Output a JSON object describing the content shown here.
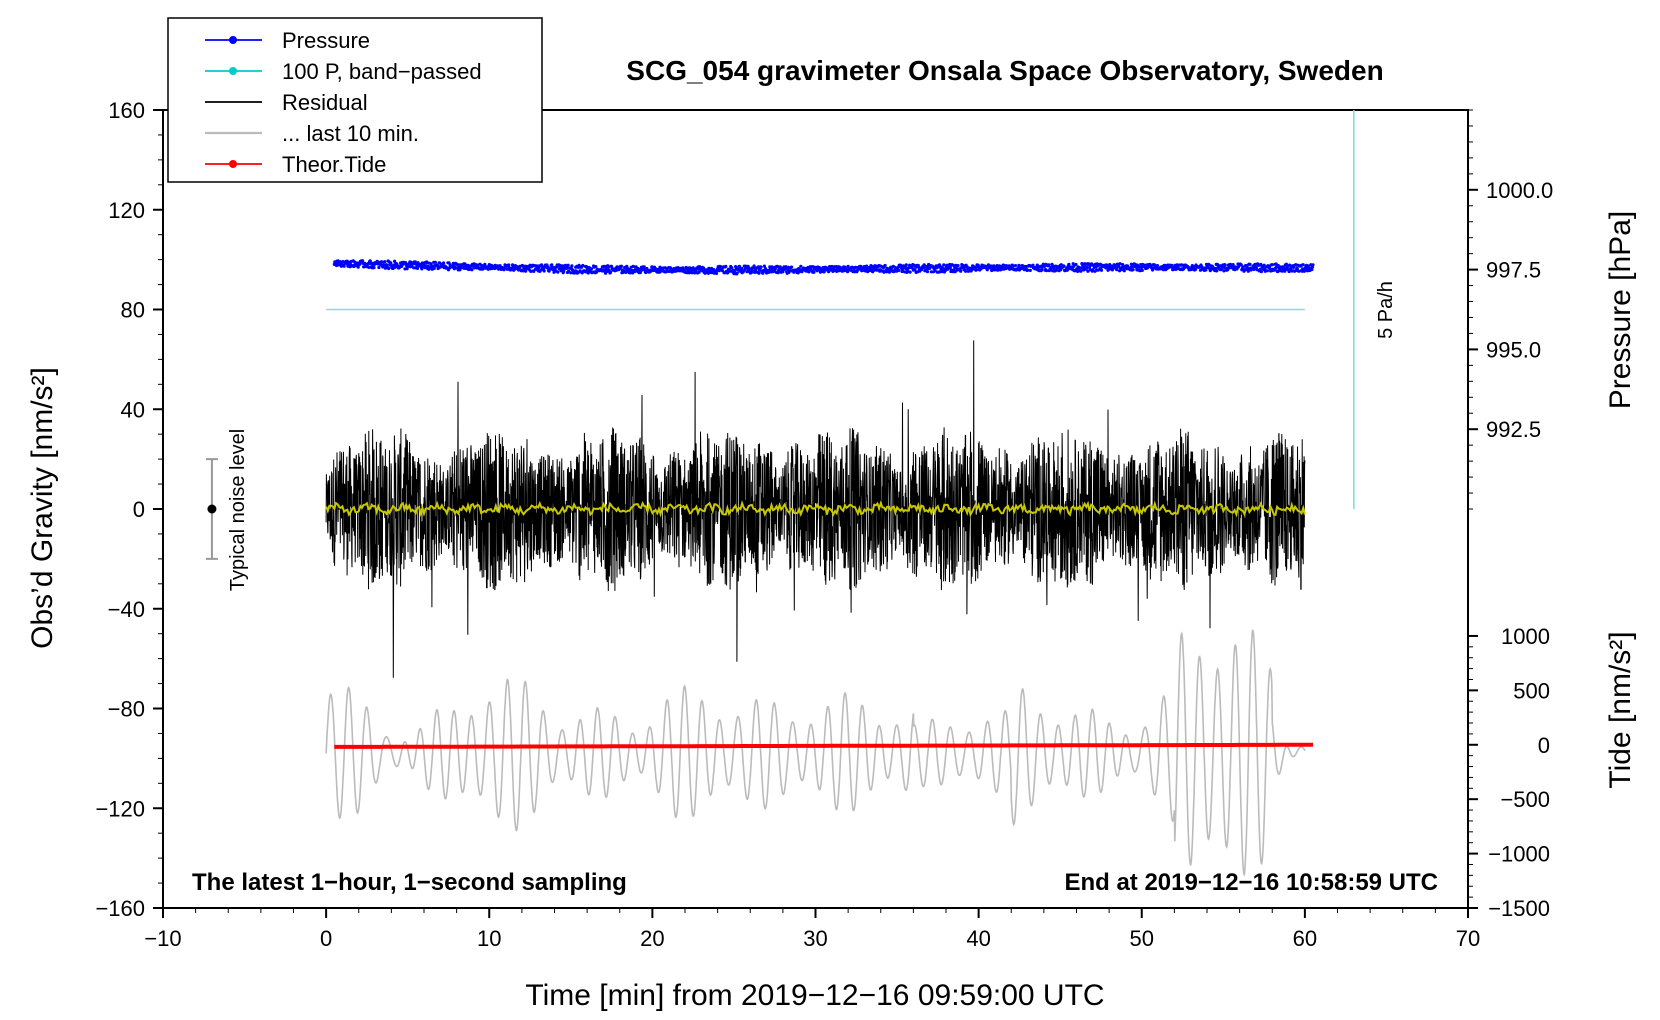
{
  "chart_data": {
    "type": "line",
    "title": "SCG_054 gravimeter Onsala Space Observatory, Sweden",
    "xlabel": "Time [min] from 2019−12−16 09:59:00 UTC",
    "ylabel_left": "Obs’d Gravity [nm/s²]",
    "ylabel_pressure": "Pressure [hPa]",
    "ylabel_tide": "Tide [nm/s²]",
    "xlim": [
      -10,
      70
    ],
    "ylim": [
      -160,
      160
    ],
    "x_ticks": [
      "−10",
      "0",
      "10",
      "20",
      "30",
      "40",
      "50",
      "60",
      "70"
    ],
    "x_tick_values": [
      -10,
      0,
      10,
      20,
      30,
      40,
      50,
      60,
      70
    ],
    "y_ticks": [
      "160",
      "120",
      "80",
      "40",
      "0",
      "−40",
      "−80",
      "−120",
      "−160"
    ],
    "y_tick_values": [
      160,
      120,
      80,
      40,
      0,
      -40,
      -80,
      -120,
      -160
    ],
    "pressure_ticks": [
      "1000.0",
      "997.5",
      "995.0",
      "992.5"
    ],
    "pressure_tick_values": [
      1000.0,
      997.5,
      995.0,
      992.5
    ],
    "pressure_range_hPa": [
      990.0,
      1002.5
    ],
    "pressure_axis_left_range": [
      0,
      160
    ],
    "tide_ticks": [
      "1000",
      "500",
      "0",
      "−500",
      "−1000",
      "−1500"
    ],
    "tide_tick_values": [
      1000,
      500,
      0,
      -500,
      -1000,
      -1500
    ],
    "tide_range": [
      -1500,
      1250
    ],
    "tide_axis_left_range": [
      -160,
      -40
    ],
    "legend": [
      {
        "label": "Pressure",
        "color": "#0000ff",
        "marker": true
      },
      {
        "label": "100 P, band−passed",
        "color": "#00cccc",
        "marker": true
      },
      {
        "label": "Residual",
        "color": "#000000",
        "marker": false
      },
      {
        "label": "... last 10 min.",
        "color": "#bbbbbb",
        "marker": false
      },
      {
        "label": "Theor.Tide",
        "color": "#ff0000",
        "marker": true
      }
    ],
    "annotations": {
      "noise": "Typical noise level",
      "noise_level": 20,
      "rate": "5 Pa/h",
      "rate_bar_x_min": 63,
      "rate_bar_range": [
        0,
        160
      ],
      "bottom_left": "The latest 1−hour, 1−second sampling",
      "bottom_right": "End at 2019−12−16 10:58:59 UTC"
    },
    "series": [
      {
        "name": "Pressure",
        "color": "#0000ff",
        "time_range_min": [
          0.5,
          60.5
        ],
        "mean_hPa": 997.6,
        "spread_hPa": 0.25
      },
      {
        "name": "100 P, band−passed",
        "color": "#80dede",
        "time_range_min": [
          0,
          60
        ],
        "value": 80
      },
      {
        "name": "Residual",
        "color": "#000000",
        "time_range_min": [
          0,
          60
        ],
        "typical_amplitude": 25,
        "peak_amplitude": 75
      },
      {
        "name": "Residual (smoothed)",
        "color": "#c8c800",
        "time_range_min": [
          0,
          60
        ],
        "value": 0
      },
      {
        "name": "... last 10 min.",
        "color": "#bbbbbb",
        "time_range_min": [
          0,
          60
        ],
        "center": -98,
        "amplitude": 30
      },
      {
        "name": "Theor.Tide",
        "color": "#ff0000",
        "time_range_min": [
          0.5,
          60.5
        ],
        "values_nm_s2": [
          -20,
          0
        ]
      }
    ]
  }
}
